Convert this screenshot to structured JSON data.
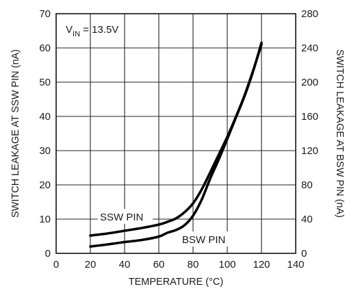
{
  "chart_data": {
    "type": "line",
    "xlabel": "TEMPERATURE (°C)",
    "ylabel_left": "SWITCH LEAKAGE AT SSW PIN (nA)",
    "ylabel_right": "SWITCH LEAKAGE AT BSW PIN (nA)",
    "xlim": [
      0,
      140
    ],
    "ylim_left": [
      0,
      70
    ],
    "ylim_right": [
      0,
      280
    ],
    "x_ticks": [
      "0",
      "20",
      "40",
      "60",
      "80",
      "100",
      "120",
      "140"
    ],
    "y_ticks_left": [
      "0",
      "10",
      "20",
      "30",
      "40",
      "50",
      "60",
      "70"
    ],
    "y_ticks_right": [
      "0",
      "40",
      "80",
      "120",
      "160",
      "200",
      "240",
      "280"
    ],
    "grid": true,
    "condition_label": "V",
    "condition_subscript": "IN",
    "condition_value": " = 13.5V",
    "series": [
      {
        "name": "SSW PIN",
        "axis": "left",
        "x": [
          20,
          30,
          40,
          50,
          60,
          65,
          70,
          75,
          80,
          85,
          90,
          95,
          100,
          105,
          110,
          115,
          120
        ],
        "y": [
          5.2,
          5.8,
          6.6,
          7.4,
          8.4,
          9.2,
          10.2,
          12.0,
          14.6,
          18.6,
          23.6,
          28.8,
          34.0,
          39.8,
          46.0,
          53.2,
          61.0
        ]
      },
      {
        "name": "BSW PIN",
        "axis": "right",
        "x": [
          20,
          30,
          40,
          50,
          60,
          65,
          70,
          75,
          80,
          85,
          90,
          95,
          100,
          105,
          110,
          115,
          120
        ],
        "y": [
          8,
          10.4,
          13.2,
          15.6,
          19.6,
          24,
          27.2,
          32.8,
          44,
          62.4,
          87.2,
          109.6,
          133.6,
          158.4,
          183.2,
          212,
          246
        ]
      }
    ]
  }
}
